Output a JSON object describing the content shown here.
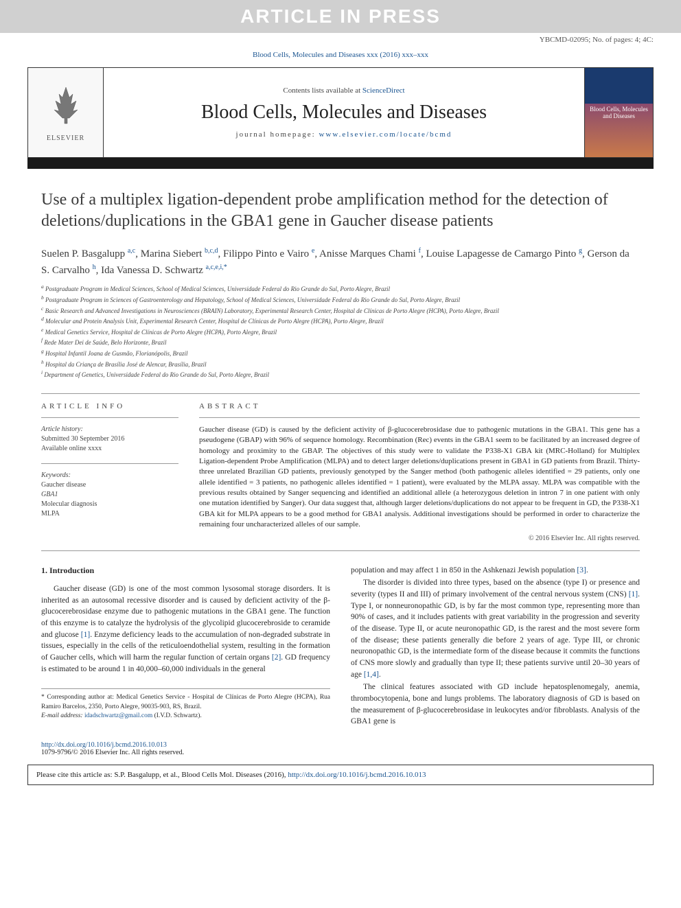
{
  "banner": "ARTICLE IN PRESS",
  "doc_id": "YBCMD-02095; No. of pages: 4; 4C:",
  "journal_ref_text": "Blood Cells, Molecules and Diseases xxx (2016) xxx–xxx",
  "header": {
    "contents_prefix": "Contents lists available at ",
    "sd": "ScienceDirect",
    "journal_title": "Blood Cells, Molecules and Diseases",
    "homepage_prefix": "journal homepage: ",
    "homepage_url": "www.elsevier.com/locate/bcmd",
    "publisher_logo": "ELSEVIER",
    "cover_text": "Blood Cells, Molecules and Diseases"
  },
  "article": {
    "title": "Use of a multiplex ligation-dependent probe amplification method for the detection of deletions/duplications in the GBA1 gene in Gaucher disease patients",
    "authors_html": "Suelen P. Basgalupp <sup>a,c</sup>, Marina Siebert <sup>b,c,d</sup>, Filippo Pinto e Vairo <sup>e</sup>, Anisse Marques Chami <sup>f</sup>, Louise Lapagesse de Camargo Pinto <sup>g</sup>, Gerson da S. Carvalho <sup>h</sup>, Ida Vanessa D. Schwartz <sup>a,c,e,i,*</sup>",
    "affiliations": [
      {
        "k": "a",
        "t": "Postgraduate Program in Medical Sciences, School of Medical Sciences, Universidade Federal do Rio Grande do Sul, Porto Alegre, Brazil"
      },
      {
        "k": "b",
        "t": "Postgraduate Program in Sciences of Gastroenterology and Hepatology, School of Medical Sciences, Universidade Federal do Rio Grande do Sul, Porto Alegre, Brazil"
      },
      {
        "k": "c",
        "t": "Basic Research and Advanced Investigations in Neurosciences (BRAIN) Laboratory, Experimental Research Center, Hospital de Clínicas de Porto Alegre (HCPA), Porto Alegre, Brazil"
      },
      {
        "k": "d",
        "t": "Molecular and Protein Analysis Unit, Experimental Research Center, Hospital de Clínicas de Porto Alegre (HCPA), Porto Alegre, Brazil"
      },
      {
        "k": "e",
        "t": "Medical Genetics Service, Hospital de Clínicas de Porto Alegre (HCPA), Porto Alegre, Brazil"
      },
      {
        "k": "f",
        "t": "Rede Mater Dei de Saúde, Belo Horizonte, Brazil"
      },
      {
        "k": "g",
        "t": "Hospital Infantil Joana de Gusmão, Florianópolis, Brazil"
      },
      {
        "k": "h",
        "t": "Hospital da Criança de Brasília José de Alencar, Brasília, Brazil"
      },
      {
        "k": "i",
        "t": "Department of Genetics, Universidade Federal do Rio Grande do Sul, Porto Alegre, Brazil"
      }
    ]
  },
  "info": {
    "label": "ARTICLE INFO",
    "history_title": "Article history:",
    "history_lines": [
      "Submitted 30 September 2016",
      "Available online xxxx"
    ],
    "keywords_title": "Keywords:",
    "keywords": [
      "Gaucher disease",
      "GBA1",
      "Molecular diagnosis",
      "MLPA"
    ]
  },
  "abstract": {
    "label": "ABSTRACT",
    "text": "Gaucher disease (GD) is caused by the deficient activity of β-glucocerebrosidase due to pathogenic mutations in the GBA1. This gene has a pseudogene (GBAP) with 96% of sequence homology. Recombination (Rec) events in the GBA1 seem to be facilitated by an increased degree of homology and proximity to the GBAP. The objectives of this study were to validate the P338-X1 GBA kit (MRC-Holland) for Multiplex Ligation-dependent Probe Amplification (MLPA) and to detect larger deletions/duplications present in GBA1 in GD patients from Brazil. Thirty-three unrelated Brazilian GD patients, previously genotyped by the Sanger method (both pathogenic alleles identified = 29 patients, only one allele identified = 3 patients, no pathogenic alleles identified = 1 patient), were evaluated by the MLPA assay. MLPA was compatible with the previous results obtained by Sanger sequencing and identified an additional allele (a heterozygous deletion in intron 7 in one patient with only one mutation identified by Sanger). Our data suggest that, although larger deletions/duplications do not appear to be frequent in GD, the P338-X1 GBA kit for MLPA appears to be a good method for GBA1 analysis. Additional investigations should be performed in order to characterize the remaining four uncharacterized alleles of our sample.",
    "copyright": "© 2016 Elsevier Inc. All rights reserved."
  },
  "body": {
    "section1_title": "1. Introduction",
    "p1": "Gaucher disease (GD) is one of the most common lysosomal storage disorders. It is inherited as an autosomal recessive disorder and is caused by deficient activity of the β-glucocerebrosidase enzyme due to pathogenic mutations in the GBA1 gene. The function of this enzyme is to catalyze the hydrolysis of the glycolipid glucocerebroside to ceramide and glucose [1]. Enzyme deficiency leads to the accumulation of non-degraded substrate in tissues, especially in the cells of the reticuloendothelial system, resulting in the formation of Gaucher cells, which will harm the regular function of certain organs [2]. GD frequency is estimated to be around 1 in 40,000–60,000 individuals in the general",
    "p2": "population and may affect 1 in 850 in the Ashkenazi Jewish population [3].",
    "p3": "The disorder is divided into three types, based on the absence (type I) or presence and severity (types II and III) of primary involvement of the central nervous system (CNS) [1]. Type I, or nonneuronopathic GD, is by far the most common type, representing more than 90% of cases, and it includes patients with great variability in the progression and severity of the disease. Type II, or acute neuronopathic GD, is the rarest and the most severe form of the disease; these patients generally die before 2 years of age. Type III, or chronic neuronopathic GD, is the intermediate form of the disease because it commits the functions of CNS more slowly and gradually than type II; these patients survive until 20–30 years of age [1,4].",
    "p4": "The clinical features associated with GD include hepatosplenomegaly, anemia, thrombocytopenia, bone and lungs problems. The laboratory diagnosis of GD is based on the measurement of β-glucocerebrosidase in leukocytes and/or fibroblasts. Analysis of the GBA1 gene is"
  },
  "footnote": {
    "corr": "* Corresponding author at: Medical Genetics Service - Hospital de Clínicas de Porto Alegre (HCPA), Rua Ramiro Barcelos, 2350, Porto Alegre, 90035-903, RS, Brazil.",
    "email_label": "E-mail address: ",
    "email": "idadschwartz@gmail.com",
    "email_who": " (I.V.D. Schwartz)."
  },
  "doi": {
    "url": "http://dx.doi.org/10.1016/j.bcmd.2016.10.013",
    "issn": "1079-9796/© 2016 Elsevier Inc. All rights reserved."
  },
  "cite_box": {
    "prefix": "Please cite this article as: S.P. Basgalupp, et al., Blood Cells Mol. Diseases (2016), ",
    "url": "http://dx.doi.org/10.1016/j.bcmd.2016.10.013"
  },
  "colors": {
    "banner_bg": "#d0d0d0",
    "banner_fg": "#ffffff",
    "link": "#1a5490",
    "text": "#2a2a2a",
    "divider": "#1a1a1a"
  }
}
